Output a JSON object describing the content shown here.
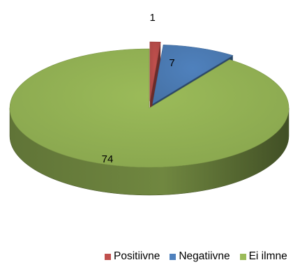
{
  "chart_data": {
    "type": "pie",
    "style": "3d-exploded",
    "categories": [
      "Positiivne",
      "Negatiivne",
      "Ei ilmne"
    ],
    "values": [
      1,
      7,
      74
    ],
    "data_labels": [
      "1",
      "7",
      "74"
    ],
    "colors": [
      "#c0504d",
      "#4f81bd",
      "#9bbb59"
    ],
    "legend_position": "bottom"
  }
}
